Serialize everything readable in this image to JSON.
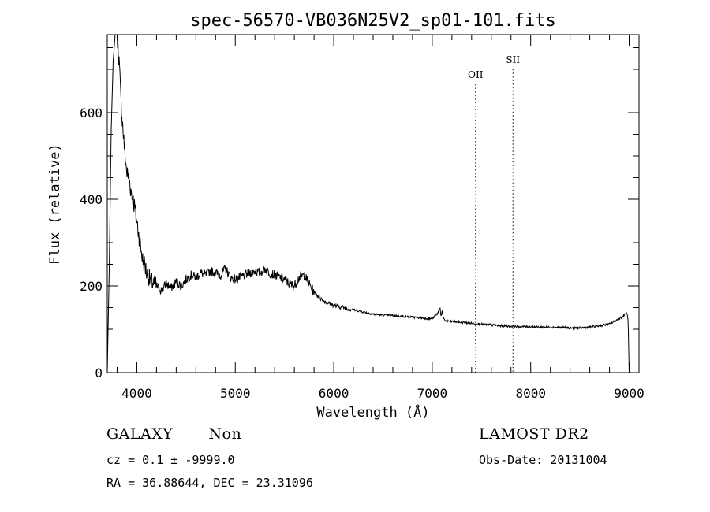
{
  "chart_data": {
    "type": "line",
    "title": "spec-56570-VB036N25V2_sp01-101.fits",
    "xlabel": "Wavelength (Å)",
    "ylabel": "Flux (relative)",
    "xlim": [
      3700,
      9100
    ],
    "ylim": [
      0,
      780
    ],
    "xticks": [
      4000,
      5000,
      6000,
      7000,
      8000,
      9000
    ],
    "yticks": [
      0,
      200,
      400,
      600
    ],
    "xtick_labels": [
      "4000",
      "5000",
      "6000",
      "7000",
      "8000",
      "9000"
    ],
    "ytick_labels": [
      "0",
      "200",
      "400",
      "600"
    ],
    "grid": false,
    "series": [
      {
        "x": [
          3700,
          3720,
          3740,
          3760,
          3780,
          3800,
          3820,
          3840,
          3860,
          3880,
          3900,
          3920,
          3940,
          3960,
          3980,
          4000,
          4020,
          4040,
          4060,
          4080,
          4100,
          4120,
          4150,
          4200,
          4250,
          4300,
          4350,
          4400,
          4450,
          4500,
          4550,
          4600,
          4650,
          4700,
          4750,
          4800,
          4850,
          4900,
          4950,
          5000,
          5050,
          5100,
          5150,
          5200,
          5250,
          5300,
          5350,
          5400,
          5450,
          5500,
          5550,
          5600,
          5650,
          5700,
          5750,
          5800,
          5850,
          5900,
          5950,
          6000,
          6100,
          6200,
          6300,
          6400,
          6500,
          6600,
          6700,
          6800,
          6900,
          7000,
          7050,
          7080,
          7090,
          7100,
          7110,
          7130,
          7200,
          7300,
          7400,
          7500,
          7600,
          7700,
          7800,
          7900,
          8000,
          8100,
          8200,
          8300,
          8400,
          8500,
          8600,
          8700,
          8800,
          8850,
          8900,
          8950,
          8970,
          8980,
          8990,
          9000
        ],
        "y": [
          0,
          240,
          560,
          720,
          780,
          780,
          720,
          620,
          560,
          500,
          460,
          450,
          420,
          400,
          380,
          350,
          320,
          290,
          260,
          250,
          230,
          220,
          210,
          200,
          190,
          205,
          195,
          210,
          200,
          215,
          225,
          220,
          230,
          225,
          235,
          230,
          225,
          240,
          220,
          215,
          220,
          225,
          230,
          235,
          230,
          240,
          230,
          225,
          220,
          215,
          205,
          200,
          220,
          225,
          205,
          185,
          175,
          165,
          160,
          155,
          150,
          145,
          140,
          135,
          133,
          132,
          130,
          128,
          126,
          124,
          135,
          150,
          128,
          145,
          125,
          120,
          118,
          116,
          114,
          112,
          110,
          108,
          107,
          106,
          106,
          105,
          105,
          104,
          103,
          103,
          105,
          108,
          112,
          118,
          125,
          132,
          138,
          135,
          120,
          0
        ]
      }
    ],
    "annotations": [
      {
        "label": "OII",
        "x": 7440,
        "y": 680
      },
      {
        "label": "SII",
        "x": 7820,
        "y": 715
      }
    ]
  },
  "footer": {
    "left_line1_a": "GALAXY",
    "left_line1_b": "Non",
    "left_line2": "cz = 0.1 ± -9999.0",
    "left_line3": "RA =  36.88644, DEC =  23.31096",
    "right_line1": "LAMOST DR2",
    "right_line2": "Obs-Date: 20131004"
  }
}
